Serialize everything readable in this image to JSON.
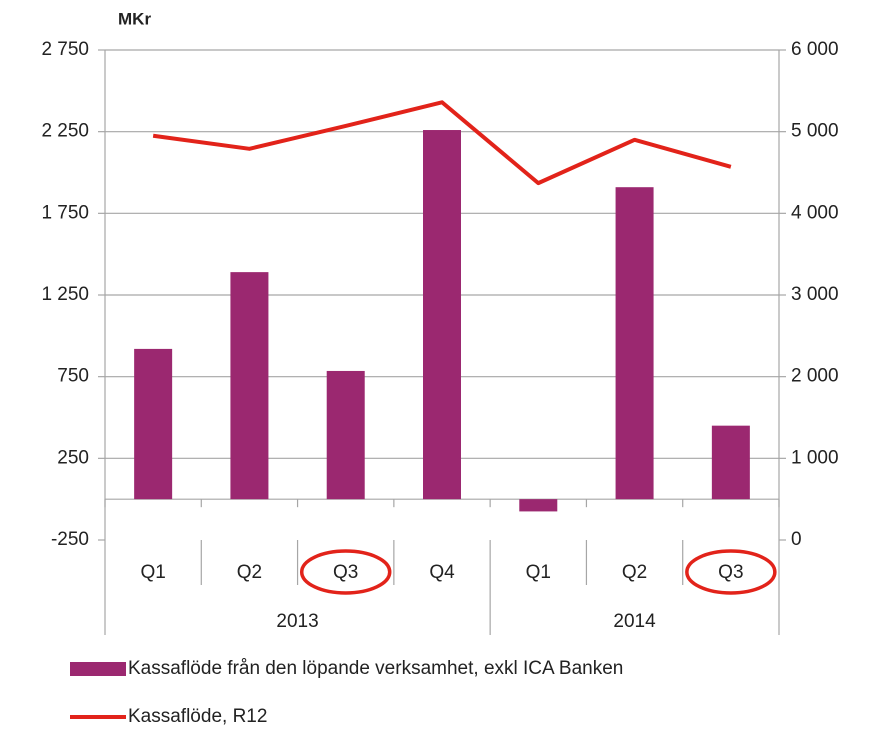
{
  "chart_data": {
    "type": "bar-line",
    "unit_label": "MKr",
    "groups": [
      {
        "name": "2013",
        "categories": [
          "Q1",
          "Q2",
          "Q3",
          "Q4"
        ]
      },
      {
        "name": "2014",
        "categories": [
          "Q1",
          "Q2",
          "Q3"
        ]
      }
    ],
    "series": [
      {
        "name": "Kassaflöde från den löpande verksamhet, exkl ICA Banken",
        "type": "bar",
        "color": "#9b2870",
        "axis": "y",
        "values": [
          920,
          1390,
          785,
          2260,
          -75,
          1910,
          450
        ]
      },
      {
        "name": "Kassaflöde, R12",
        "type": "line",
        "color": "#e2231a",
        "axis": "y2",
        "values": [
          4950,
          4790,
          5070,
          5360,
          4370,
          4900,
          4570
        ]
      }
    ],
    "ylim": [
      -250,
      2750
    ],
    "yticks": [
      {
        "value": -250,
        "label": "-250"
      },
      250,
      750,
      {
        "value": 1250,
        "label": "1 250"
      },
      {
        "value": 1750,
        "label": "1 750"
      },
      {
        "value": 2250,
        "label": "2 250"
      },
      {
        "value": 2750,
        "label": "2 750"
      }
    ],
    "y2lim": [
      0,
      6000
    ],
    "y2ticks": [
      0,
      {
        "value": 1000,
        "label": "1 000"
      },
      {
        "value": 2000,
        "label": "2 000"
      },
      {
        "value": 3000,
        "label": "3 000"
      },
      {
        "value": 4000,
        "label": "4 000"
      },
      {
        "value": 5000,
        "label": "5 000"
      },
      {
        "value": 6000,
        "label": "6 000"
      }
    ],
    "grid": true,
    "legend": "bottom"
  }
}
